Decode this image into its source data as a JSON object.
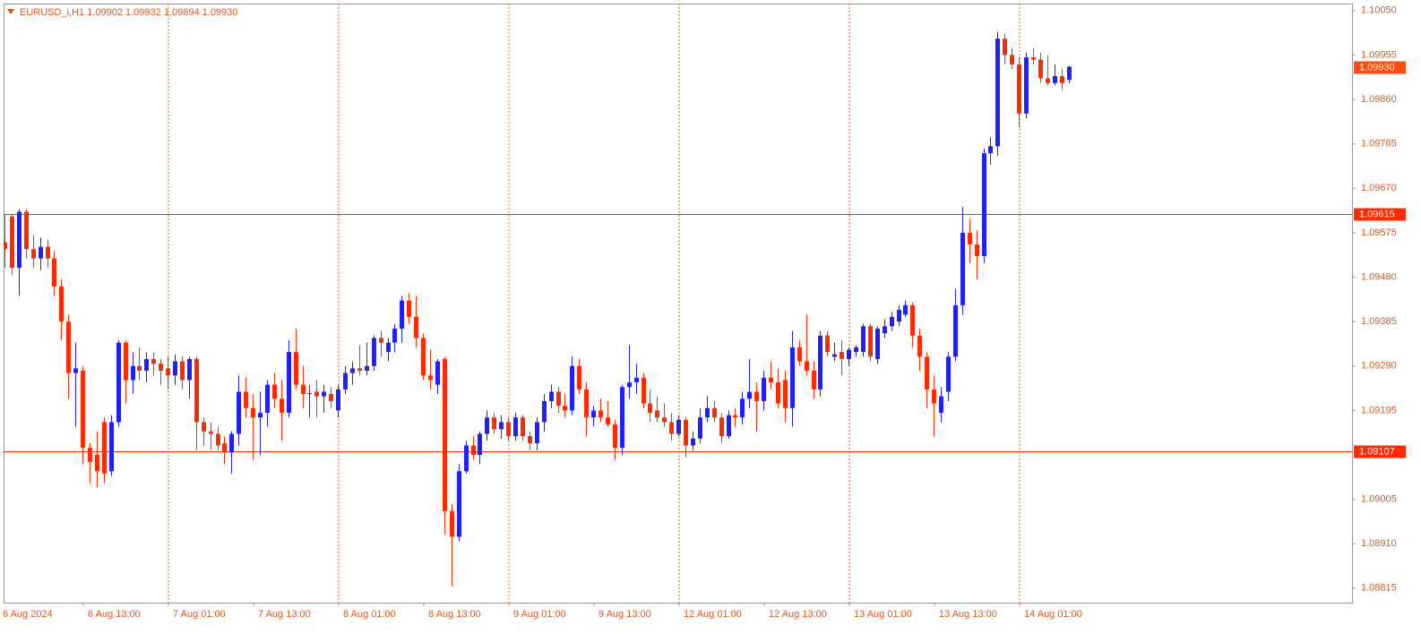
{
  "chart_data": {
    "type": "candlestick",
    "title": "EURUSD_i,H1  1.09902 1.09932 1.09894 1.09930",
    "categories": [
      "6 Aug 2024",
      null,
      null,
      null,
      null,
      null,
      null,
      null,
      null,
      null,
      null,
      null,
      "6 Aug 13:00",
      null,
      null,
      null,
      null,
      null,
      null,
      null,
      null,
      null,
      null,
      null,
      "7 Aug 01:00",
      null,
      null,
      null,
      null,
      null,
      null,
      null,
      null,
      null,
      null,
      null,
      "7 Aug 13:00",
      null,
      null,
      null,
      null,
      null,
      null,
      null,
      null,
      null,
      null,
      null,
      "8 Aug 01:00",
      null,
      null,
      null,
      null,
      null,
      null,
      null,
      null,
      null,
      null,
      null,
      "8 Aug 13:00",
      null,
      null,
      null,
      null,
      null,
      null,
      null,
      null,
      null,
      null,
      null,
      "9 Aug 01:00",
      null,
      null,
      null,
      null,
      null,
      null,
      null,
      null,
      null,
      null,
      null,
      "9 Aug 13:00",
      null,
      null,
      null,
      null,
      null,
      null,
      null,
      null,
      null,
      null,
      null,
      "12 Aug 01:00",
      null,
      null,
      null,
      null,
      null,
      null,
      null,
      null,
      null,
      null,
      null,
      "12 Aug 13:00",
      null,
      null,
      null,
      null,
      null,
      null,
      null,
      null,
      null,
      null,
      null,
      "13 Aug 01:00",
      null,
      null,
      null,
      null,
      null,
      null,
      null,
      null,
      null,
      null,
      null,
      "13 Aug 13:00",
      null,
      null,
      null,
      null,
      null,
      null,
      null,
      null,
      null,
      null,
      null,
      "14 Aug 01:00",
      null,
      null,
      null,
      null,
      null,
      null
    ],
    "open": [
      1.09555,
      1.0961,
      1.095,
      1.0962,
      1.0954,
      1.0952,
      1.09545,
      1.0952,
      1.0946,
      1.09385,
      1.09275,
      1.0928,
      1.09115,
      1.091,
      1.0917,
      1.09065,
      1.0917,
      1.0934,
      1.0926,
      1.0929,
      1.0928,
      1.09305,
      1.09295,
      1.09285,
      1.0927,
      1.093,
      1.0926,
      1.09305,
      1.0917,
      1.0915,
      1.09145,
      1.09125,
      1.09105,
      1.09145,
      1.09235,
      1.092,
      1.0918,
      1.0919,
      1.0925,
      1.0922,
      1.0919,
      1.0932,
      1.0925,
      1.0923,
      1.09235,
      1.09225,
      1.0923,
      1.09195,
      1.0924,
      1.09275,
      1.09285,
      1.0928,
      1.0929,
      1.0935,
      1.0932,
      1.0934,
      1.0937,
      1.0943,
      1.09395,
      1.0935,
      1.0927,
      1.0925,
      1.09305,
      1.0898,
      1.08925,
      1.09065,
      1.0912,
      1.091,
      1.09145,
      1.0918,
      1.09155,
      1.0917,
      1.0914,
      1.0918,
      1.0914,
      1.09125,
      1.0917,
      1.09215,
      1.09235,
      1.09205,
      1.09195,
      1.0929,
      1.0924,
      1.0918,
      1.09195,
      1.0918,
      1.09165,
      1.09115,
      1.09245,
      1.09255,
      1.09265,
      1.0921,
      1.09195,
      1.0918,
      1.0917,
      1.09145,
      1.09175,
      1.0912,
      1.09135,
      1.0918,
      1.092,
      1.0918,
      1.0914,
      1.09185,
      1.0918,
      1.0922,
      1.09235,
      1.09215,
      1.09265,
      1.09255,
      1.0926,
      1.092,
      1.0933,
      1.093,
      1.0928,
      1.0924,
      1.09355,
      1.0931,
      1.0932,
      1.09305,
      1.0932,
      1.0932,
      1.09375,
      1.09305,
      1.0936,
      1.09375,
      1.09385,
      1.094,
      1.0942,
      1.09355,
      1.0931,
      1.0924,
      1.0919,
      1.09235,
      1.0931,
      1.0942,
      1.09575,
      1.0955,
      1.09525,
      1.09745,
      1.0976,
      1.0999,
      1.09955,
      1.09935,
      1.0983,
      1.0995,
      1.09945,
      1.09905,
      1.09895,
      1.0991,
      1.09902
    ],
    "high": [
      1.09615,
      1.09615,
      1.09625,
      1.09625,
      1.0957,
      1.09565,
      1.0956,
      1.09535,
      1.09475,
      1.094,
      1.0934,
      1.0929,
      1.09125,
      1.0915,
      1.0918,
      1.09185,
      1.09345,
      1.09345,
      1.0932,
      1.0933,
      1.0932,
      1.0932,
      1.09305,
      1.0931,
      1.09315,
      1.0931,
      1.0931,
      1.0931,
      1.0918,
      1.0917,
      1.0916,
      1.0914,
      1.0915,
      1.0927,
      1.09265,
      1.0923,
      1.09235,
      1.0926,
      1.09275,
      1.0926,
      1.09345,
      1.0937,
      1.0929,
      1.0925,
      1.0926,
      1.0925,
      1.09245,
      1.0925,
      1.0929,
      1.093,
      1.09335,
      1.0934,
      1.09355,
      1.09365,
      1.0935,
      1.0938,
      1.0944,
      1.09445,
      1.0944,
      1.0936,
      1.09325,
      1.09305,
      1.0931,
      1.08995,
      1.0908,
      1.0913,
      1.0914,
      1.0915,
      1.09195,
      1.0919,
      1.09185,
      1.0918,
      1.0919,
      1.09185,
      1.0915,
      1.0918,
      1.0923,
      1.0925,
      1.09245,
      1.0923,
      1.0931,
      1.09305,
      1.09255,
      1.09205,
      1.0922,
      1.09215,
      1.09175,
      1.0925,
      1.09335,
      1.09295,
      1.09275,
      1.0924,
      1.09225,
      1.0921,
      1.0919,
      1.09185,
      1.0918,
      1.0915,
      1.092,
      1.09225,
      1.09215,
      1.0919,
      1.09195,
      1.092,
      1.09235,
      1.09305,
      1.09255,
      1.0928,
      1.093,
      1.09285,
      1.0928,
      1.09365,
      1.09345,
      1.094,
      1.093,
      1.09365,
      1.09365,
      1.0934,
      1.09345,
      1.0933,
      1.09335,
      1.0938,
      1.0938,
      1.09375,
      1.0939,
      1.09405,
      1.0942,
      1.0943,
      1.09425,
      1.0937,
      1.0932,
      1.0927,
      1.09245,
      1.0932,
      1.09455,
      1.0963,
      1.09605,
      1.0958,
      1.09755,
      1.0978,
      1.10005,
      1.1,
      1.0997,
      1.0995,
      1.0996,
      1.0997,
      1.0996,
      1.09955,
      1.09935,
      1.09925,
      1.09932
    ],
    "low": [
      1.095,
      1.09485,
      1.0944,
      1.0952,
      1.095,
      1.09495,
      1.095,
      1.0944,
      1.09345,
      1.0922,
      1.0916,
      1.0908,
      1.0904,
      1.0903,
      1.0904,
      1.09055,
      1.0916,
      1.0921,
      1.0923,
      1.0926,
      1.09255,
      1.0927,
      1.0925,
      1.0924,
      1.0925,
      1.0924,
      1.0922,
      1.0911,
      1.0912,
      1.0911,
      1.0911,
      1.0908,
      1.0906,
      1.0912,
      1.0918,
      1.0909,
      1.091,
      1.0916,
      1.092,
      1.0913,
      1.0918,
      1.0924,
      1.092,
      1.0918,
      1.0918,
      1.0919,
      1.092,
      1.0918,
      1.0923,
      1.0925,
      1.0927,
      1.0927,
      1.0928,
      1.0931,
      1.093,
      1.0932,
      1.0934,
      1.0938,
      1.0933,
      1.0926,
      1.0924,
      1.0923,
      1.0893,
      1.0882,
      1.08915,
      1.0906,
      1.0909,
      1.0908,
      1.0913,
      1.09145,
      1.09135,
      1.0913,
      1.0913,
      1.0913,
      1.0911,
      1.0911,
      1.0915,
      1.092,
      1.0919,
      1.0918,
      1.09185,
      1.0923,
      1.0914,
      1.0916,
      1.0917,
      1.0916,
      1.0909,
      1.091,
      1.0922,
      1.0923,
      1.092,
      1.0917,
      1.0917,
      1.0916,
      1.0913,
      1.0914,
      1.09095,
      1.0911,
      1.09125,
      1.0917,
      1.0917,
      1.09125,
      1.09135,
      1.0916,
      1.09165,
      1.092,
      1.0915,
      1.09195,
      1.0924,
      1.092,
      1.0917,
      1.0916,
      1.0929,
      1.0927,
      1.0922,
      1.09225,
      1.0931,
      1.093,
      1.0927,
      1.0929,
      1.0931,
      1.0931,
      1.093,
      1.09295,
      1.0935,
      1.09365,
      1.09375,
      1.09395,
      1.0933,
      1.0928,
      1.092,
      1.0914,
      1.0917,
      1.09215,
      1.093,
      1.094,
      1.0951,
      1.09475,
      1.0951,
      1.0972,
      1.0974,
      1.09935,
      1.09925,
      1.098,
      1.0982,
      1.09935,
      1.09895,
      1.0989,
      1.0989,
      1.0988,
      1.09894
    ],
    "close": [
      1.0954,
      1.095,
      1.0962,
      1.0954,
      1.0952,
      1.09545,
      1.0952,
      1.0946,
      1.09385,
      1.09275,
      1.09285,
      1.09115,
      1.09085,
      1.09065,
      1.0906,
      1.0917,
      1.0934,
      1.0926,
      1.0929,
      1.0928,
      1.09305,
      1.09295,
      1.0928,
      1.0927,
      1.093,
      1.0926,
      1.09305,
      1.0917,
      1.0915,
      1.09145,
      1.0912,
      1.09105,
      1.09145,
      1.09235,
      1.092,
      1.0918,
      1.0919,
      1.0925,
      1.0922,
      1.0919,
      1.0932,
      1.0925,
      1.0923,
      1.09232,
      1.09225,
      1.09235,
      1.09215,
      1.0924,
      1.09275,
      1.09285,
      1.0928,
      1.0929,
      1.0935,
      1.0934,
      1.0934,
      1.0937,
      1.0943,
      1.09395,
      1.0935,
      1.0927,
      1.0926,
      1.093,
      1.0898,
      1.08925,
      1.09065,
      1.0912,
      1.091,
      1.09145,
      1.0918,
      1.09155,
      1.0917,
      1.0914,
      1.0918,
      1.0914,
      1.09125,
      1.0917,
      1.09215,
      1.09235,
      1.09205,
      1.09195,
      1.0929,
      1.0924,
      1.0918,
      1.09195,
      1.0918,
      1.09165,
      1.09115,
      1.09245,
      1.09255,
      1.09265,
      1.0921,
      1.0919,
      1.0918,
      1.0917,
      1.09145,
      1.09175,
      1.0912,
      1.09135,
      1.0918,
      1.092,
      1.0918,
      1.0914,
      1.09185,
      1.0918,
      1.0922,
      1.09235,
      1.09215,
      1.09265,
      1.09255,
      1.0921,
      1.092,
      1.0933,
      1.093,
      1.0928,
      1.0924,
      1.09355,
      1.0932,
      1.09315,
      1.09305,
      1.09325,
      1.0933,
      1.09375,
      1.0931,
      1.0937,
      1.09375,
      1.09395,
      1.0941,
      1.0942,
      1.09355,
      1.0931,
      1.0924,
      1.0921,
      1.09225,
      1.0931,
      1.0942,
      1.09575,
      1.0955,
      1.09525,
      1.09745,
      1.0976,
      1.0999,
      1.09955,
      1.09935,
      1.0983,
      1.0995,
      1.09945,
      1.09905,
      1.09895,
      1.0991,
      1.09895,
      1.0993
    ],
    "up_color": "#1f1fff",
    "down_color": "#ff2a00",
    "line_color": "#ff2a00",
    "grid": true,
    "ylim": [
      1.08784,
      1.10065
    ],
    "yticks": [
      {
        "value": 1.1005,
        "label": "1.10050"
      },
      1.09955,
      {
        "value": 1.0986,
        "label": "1.09860"
      },
      1.09765,
      {
        "value": 1.0967,
        "label": "1.09670"
      },
      1.09575,
      {
        "value": 1.0948,
        "label": "1.09480"
      },
      1.09385,
      {
        "value": 1.0929,
        "label": "1.09290"
      },
      1.09195,
      1.09005,
      {
        "value": 1.0891,
        "label": "1.08910"
      },
      1.08815
    ],
    "hlines": [
      1.09615,
      1.09107
    ],
    "last_price": {
      "value": 1.0993,
      "label": "1.09930"
    }
  }
}
